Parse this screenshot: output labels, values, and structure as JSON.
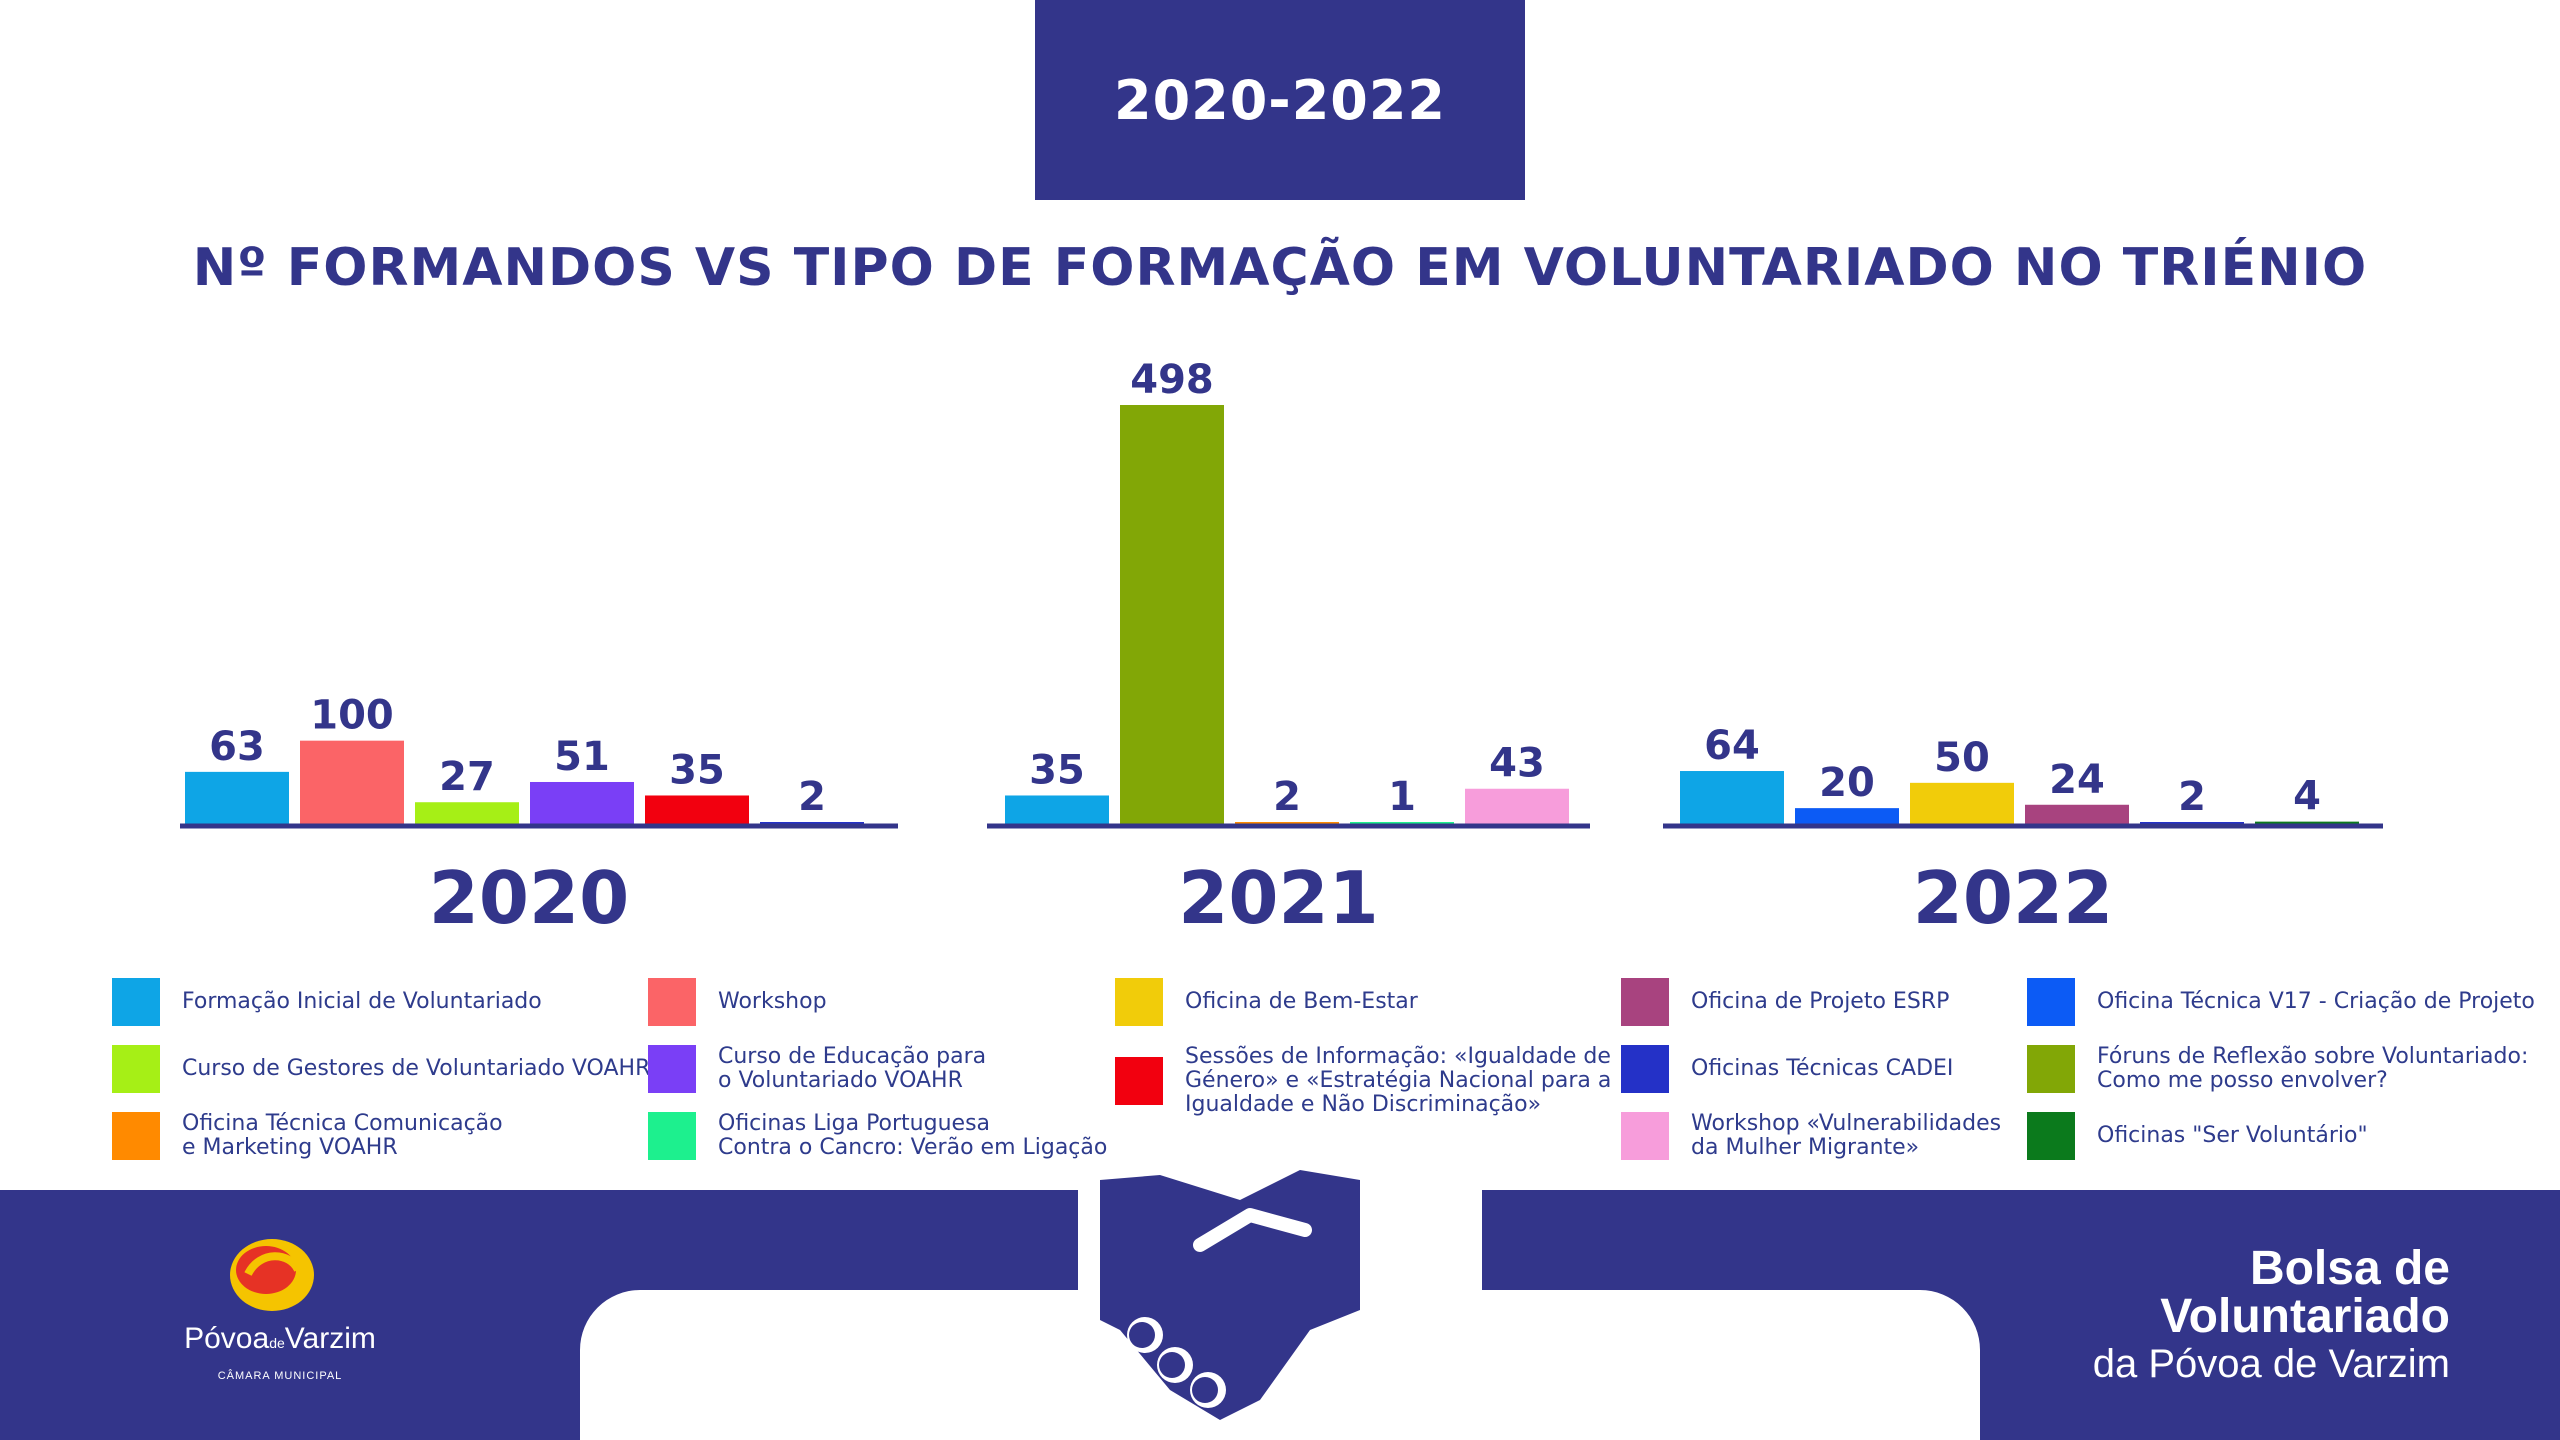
{
  "header": {
    "period": "2020-2022"
  },
  "title": "Nº FORMANDOS VS TIPO DE FORMAÇÃO EM VOLUNTARIADO NO TRIÉNIO",
  "chart_data": [
    {
      "type": "bar",
      "title": "2020",
      "ylim": [
        0,
        498
      ],
      "bars": [
        {
          "category": "Formação Inicial de Voluntariado",
          "value": 63,
          "color": "#0ea5e6"
        },
        {
          "category": "Workshop",
          "value": 100,
          "color": "#fb6467"
        },
        {
          "category": "Curso de Gestores de Voluntariado VOAHR",
          "value": 27,
          "color": "#a6ef16"
        },
        {
          "category": "Curso de Educação para o Voluntariado VOAHR",
          "value": 51,
          "color": "#7a3ff6"
        },
        {
          "category": "Sessões de Informação",
          "value": 35,
          "color": "#f2000f"
        },
        {
          "category": "Oficinas Técnicas CADEI",
          "value": 2,
          "color": "#2431c7"
        }
      ]
    },
    {
      "type": "bar",
      "title": "2021",
      "ylim": [
        0,
        498
      ],
      "bars": [
        {
          "category": "Formação Inicial de Voluntariado",
          "value": 35,
          "color": "#0ea5e6"
        },
        {
          "category": "Fóruns de Reflexão sobre Voluntariado",
          "value": 498,
          "color": "#82a706"
        },
        {
          "category": "Oficina Técnica Comunicação e Marketing VOAHR",
          "value": 2,
          "color": "#ff8a00"
        },
        {
          "category": "Oficinas Liga Portuguesa Contra o Cancro",
          "value": 1,
          "color": "#1df08e"
        },
        {
          "category": "Workshop «Vulnerabilidades da Mulher Migrante»",
          "value": 43,
          "color": "#f79ddb"
        }
      ]
    },
    {
      "type": "bar",
      "title": "2022",
      "ylim": [
        0,
        498
      ],
      "bars": [
        {
          "category": "Formação Inicial de Voluntariado",
          "value": 64,
          "color": "#0ea5e6"
        },
        {
          "category": "Oficina Técnica V17 - Criação de Projeto",
          "value": 20,
          "color": "#0c5bf5"
        },
        {
          "category": "Oficina de Bem-Estar",
          "value": 50,
          "color": "#f1cc0a"
        },
        {
          "category": "Oficina de Projeto ESRP",
          "value": 24,
          "color": "#a8437f"
        },
        {
          "category": "Oficinas Técnicas CADEI",
          "value": 2,
          "color": "#2431c7"
        },
        {
          "category": "Oficinas Ser Voluntário",
          "value": 4,
          "color": "#0b7a1c"
        }
      ]
    }
  ],
  "legend": [
    {
      "label": "Formação Inicial de Voluntariado",
      "color": "#0ea5e6"
    },
    {
      "label": "Curso de Gestores de Voluntariado VOAHR",
      "color": "#a6ef16"
    },
    {
      "label": "Oficina Técnica Comunicação\ne Marketing VOAHR",
      "color": "#ff8a00"
    },
    {
      "label": "Workshop",
      "color": "#fb6467"
    },
    {
      "label": "Curso de Educação para\no Voluntariado VOAHR",
      "color": "#7a3ff6"
    },
    {
      "label": "Oficinas Liga Portuguesa\nContra o Cancro: Verão em Ligação",
      "color": "#1df08e"
    },
    {
      "label": "Oficina de Bem-Estar",
      "color": "#f1cc0a"
    },
    {
      "label": "Sessões de Informação: «Igualdade de\nGénero» e «Estratégia Nacional para a\nIgualdade e Não Discriminação»",
      "color": "#f2000f"
    },
    {
      "label": "Oficina de Projeto ESRP",
      "color": "#a8437f"
    },
    {
      "label": "Oficinas Técnicas CADEI",
      "color": "#2431c7"
    },
    {
      "label": "Workshop «Vulnerabilidades\nda Mulher Migrante»",
      "color": "#f79ddb"
    },
    {
      "label": "Oficina Técnica V17 - Criação de Projeto",
      "color": "#0c5bf5"
    },
    {
      "label": "Fóruns de Reflexão sobre Voluntariado:\nComo me posso envolver?",
      "color": "#82a706"
    },
    {
      "label": "Oficinas \"Ser Voluntário\"",
      "color": "#0b7a1c"
    }
  ],
  "footer": {
    "logo": {
      "name": "Póvoa",
      "small": "de",
      "name2": "Varzim",
      "subtitle": "CÂMARA MUNICIPAL"
    },
    "brand": {
      "line1": "Bolsa de",
      "line2": "Voluntariado",
      "line3": "da Póvoa de Varzim"
    }
  },
  "colors": {
    "primary": "#33358a"
  }
}
